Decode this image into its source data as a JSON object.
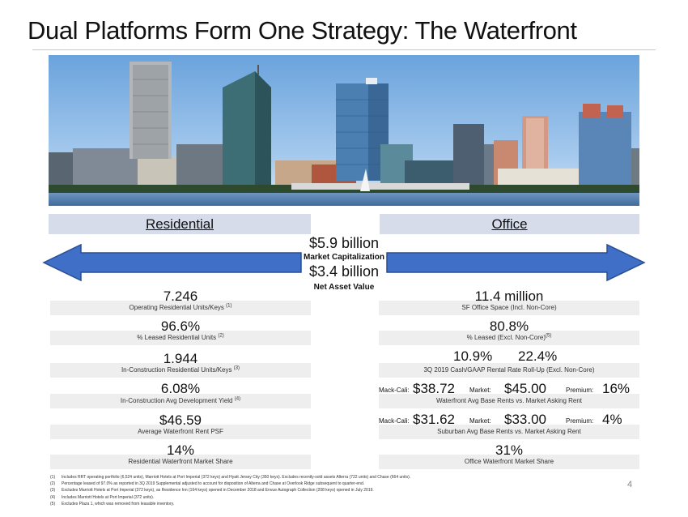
{
  "title": "Dual Platforms Form One Strategy: The Waterfront",
  "headers": {
    "residential": "Residential",
    "office": "Office"
  },
  "center": {
    "market_cap_value": "$5.9 billion",
    "market_cap_label": "Market Capitalization",
    "nav_value": "$3.4 billion",
    "nav_label": "Net Asset Value"
  },
  "residential": [
    {
      "value": "7,246",
      "label": "Operating Residential Units/Keys",
      "note": "(1)"
    },
    {
      "value": "96.6%",
      "label": "% Leased Residential Units",
      "note": "(2)"
    },
    {
      "value": "1,944",
      "label": "In-Construction Residential Units/Keys",
      "note": "(3)"
    },
    {
      "value": "6.08%",
      "label": "In-Construction Avg Development Yield",
      "note": "(4)"
    },
    {
      "value": "$46.59",
      "label": "Average Waterfront Rent PSF",
      "note": ""
    },
    {
      "value": "14%",
      "label": "Residential Waterfront Market Share",
      "note": ""
    }
  ],
  "office": {
    "space": {
      "value": "11.4 million",
      "label": "SF Office Space (Incl. Non-Core)"
    },
    "leased": {
      "value": "80.8%",
      "label": "% Leased (Excl. Non-Core)",
      "note": "(5)"
    },
    "rollup": {
      "cash": "10.9%",
      "gaap": "22.4%",
      "label": "3Q 2019 Cash/GAAP Rental Rate Roll-Up (Excl. Non-Core)"
    },
    "waterfront_rents": {
      "mc_label": "Mack-Cali:",
      "mc_value": "$38.72",
      "mkt_label": "Market:",
      "mkt_value": "$45.00",
      "prem_label": "Premium:",
      "prem_value": "16%",
      "label": "Waterfront Avg Base Rents vs. Market Asking Rent"
    },
    "suburban_rents": {
      "mc_label": "Mack-Cali:",
      "mc_value": "$31.62",
      "mkt_label": "Market:",
      "mkt_value": "$33.00",
      "prem_label": "Premium:",
      "prem_value": "4%",
      "label": "Suburban Avg Base Rents vs. Market Asking Rent"
    },
    "share": {
      "value": "31%",
      "label": "Office Waterfront Market Share"
    }
  },
  "footnotes": [
    {
      "num": "(1)",
      "text": "Includes RRT operating portfolio (6,524 units), Marriott Hotels at Port Imperial (372 keys) and Hyatt Jersey City (350 keys). Excludes recently-sold assets Alterra (722 units) and Chase (664 units)."
    },
    {
      "num": "(2)",
      "text": "Percentage leased of 97.0% as reported in 3Q 2019 Supplemental adjusted to account for disposition of Alterra and Chase at Overlook Ridge subsequent to quarter-end."
    },
    {
      "num": "(3)",
      "text": "Excludes Marriott Hotels at Port Imperial (372 keys), as Residence Inn (164 keys) opened in December 2018 and Envue Autograph Collection (208 keys) opened in July 2019."
    },
    {
      "num": "(4)",
      "text": "Includes Marriott Hotels at Port Imperial (372 units)."
    },
    {
      "num": "(5)",
      "text": "Excludes Plaza 1, which was removed from leasable inventory."
    }
  ],
  "page_number": "4",
  "colors": {
    "arrow_blue": "#3f6fc6",
    "arrow_outline": "#2a4f94",
    "header_bg": "#d7dcea",
    "bar_bg": "#eeeeee"
  }
}
